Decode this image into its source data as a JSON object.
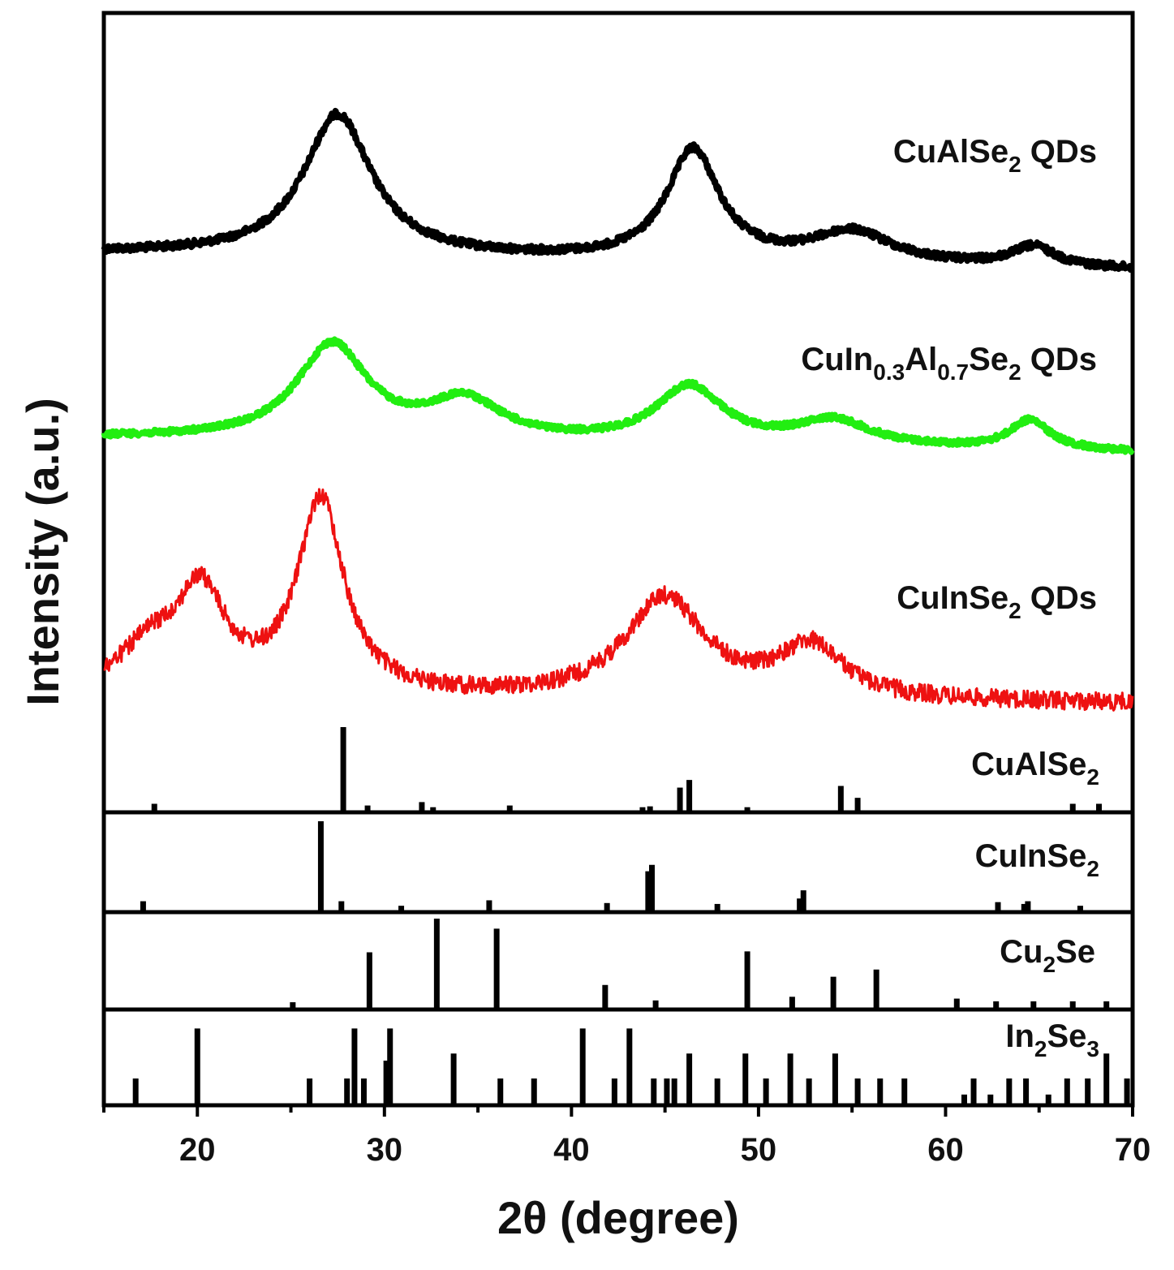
{
  "chart_data": {
    "type": "line",
    "xlabel": "2θ (degree)",
    "ylabel": "Intensity (a.u.)",
    "xlim": [
      15,
      70
    ],
    "xticks": [
      20,
      30,
      40,
      50,
      60,
      70
    ],
    "series": [
      {
        "name": "CuAlSe2 QDs",
        "label_main": "CuAlSe",
        "label_sub": "2",
        "label_tail": " QDs",
        "color": "#000000",
        "baseline": 0.12,
        "peaks": [
          {
            "x": 27.5,
            "height": 1.0,
            "width": 2.2
          },
          {
            "x": 46.5,
            "height": 0.78,
            "width": 1.7
          },
          {
            "x": 55.0,
            "height": 0.22,
            "width": 2.6
          },
          {
            "x": 64.7,
            "height": 0.14,
            "width": 1.4
          }
        ],
        "slope": -0.12
      },
      {
        "name": "CuIn0.3Al0.7Se2 QDs",
        "label_main": "CuIn",
        "label_sub1": "0.3",
        "label_mid": "Al",
        "label_sub2": "0.7",
        "label_mid2": "Se",
        "label_sub3": "2",
        "label_tail": " QDs",
        "color": "#22ee11",
        "baseline": 0.12,
        "peaks": [
          {
            "x": 27.2,
            "height": 0.78,
            "width": 2.3
          },
          {
            "x": 34.3,
            "height": 0.32,
            "width": 2.4
          },
          {
            "x": 46.3,
            "height": 0.47,
            "width": 2.2
          },
          {
            "x": 54.0,
            "height": 0.21,
            "width": 2.4
          },
          {
            "x": 64.5,
            "height": 0.24,
            "width": 1.3
          }
        ],
        "slope": -0.12
      },
      {
        "name": "CuInSe2 QDs",
        "label_main": "CuInSe",
        "label_sub": "2",
        "label_tail": " QDs",
        "color": "#ee1111",
        "baseline": 0.12,
        "peaks": [
          {
            "x": 20.2,
            "height": 0.78,
            "width": 1.6
          },
          {
            "x": 26.6,
            "height": 1.6,
            "width": 1.5
          },
          {
            "x": 45.0,
            "height": 0.83,
            "width": 2.6
          },
          {
            "x": 52.8,
            "height": 0.42,
            "width": 2.1
          },
          {
            "x": 17.5,
            "height": 0.35,
            "width": 2.2
          }
        ],
        "slope": -0.05
      }
    ],
    "references": [
      {
        "name": "CuAlSe2",
        "label_main": "CuAlSe",
        "label_sub": "2",
        "lines": [
          [
            17.7,
            0.1
          ],
          [
            27.8,
            1.0
          ],
          [
            29.1,
            0.08
          ],
          [
            32.0,
            0.12
          ],
          [
            32.6,
            0.06
          ],
          [
            36.7,
            0.08
          ],
          [
            43.8,
            0.06
          ],
          [
            44.2,
            0.07
          ],
          [
            45.8,
            0.29
          ],
          [
            46.3,
            0.38
          ],
          [
            49.4,
            0.06
          ],
          [
            54.4,
            0.31
          ],
          [
            55.3,
            0.17
          ],
          [
            66.8,
            0.1
          ],
          [
            68.2,
            0.1
          ]
        ]
      },
      {
        "name": "CuInSe2",
        "label_main": "CuInSe",
        "label_sub": "2",
        "lines": [
          [
            17.1,
            0.12
          ],
          [
            26.6,
            1.0
          ],
          [
            27.7,
            0.12
          ],
          [
            30.9,
            0.07
          ],
          [
            35.6,
            0.13
          ],
          [
            41.9,
            0.1
          ],
          [
            44.1,
            0.45
          ],
          [
            44.3,
            0.52
          ],
          [
            47.8,
            0.09
          ],
          [
            52.2,
            0.15
          ],
          [
            52.4,
            0.24
          ],
          [
            62.8,
            0.11
          ],
          [
            64.2,
            0.09
          ],
          [
            64.4,
            0.12
          ],
          [
            67.2,
            0.07
          ]
        ]
      },
      {
        "name": "Cu2Se",
        "label_main": "Cu",
        "label_sub": "2",
        "label_tail": "Se",
        "lines": [
          [
            25.1,
            0.08
          ],
          [
            29.2,
            0.63
          ],
          [
            32.8,
            1.0
          ],
          [
            36.0,
            0.89
          ],
          [
            41.8,
            0.27
          ],
          [
            44.5,
            0.1
          ],
          [
            49.4,
            0.64
          ],
          [
            51.8,
            0.14
          ],
          [
            54.0,
            0.36
          ],
          [
            56.3,
            0.44
          ],
          [
            60.6,
            0.12
          ],
          [
            62.7,
            0.09
          ],
          [
            64.7,
            0.09
          ],
          [
            66.8,
            0.09
          ],
          [
            68.6,
            0.09
          ]
        ]
      },
      {
        "name": "In2Se3",
        "label_main": "In",
        "label_sub": "2",
        "label_tail": "Se",
        "label_sub2": "3",
        "lines": [
          [
            16.7,
            0.3
          ],
          [
            20.0,
            0.86
          ],
          [
            26.0,
            0.3
          ],
          [
            28.0,
            0.3
          ],
          [
            28.4,
            0.86
          ],
          [
            28.9,
            0.3
          ],
          [
            30.1,
            0.5
          ],
          [
            30.3,
            0.86
          ],
          [
            33.7,
            0.58
          ],
          [
            36.2,
            0.3
          ],
          [
            38.0,
            0.3
          ],
          [
            40.6,
            0.86
          ],
          [
            42.3,
            0.3
          ],
          [
            43.1,
            0.86
          ],
          [
            44.4,
            0.3
          ],
          [
            45.1,
            0.3
          ],
          [
            45.5,
            0.3
          ],
          [
            46.3,
            0.58
          ],
          [
            47.8,
            0.3
          ],
          [
            49.3,
            0.58
          ],
          [
            50.4,
            0.3
          ],
          [
            51.7,
            0.58
          ],
          [
            52.7,
            0.3
          ],
          [
            54.1,
            0.58
          ],
          [
            55.3,
            0.3
          ],
          [
            56.5,
            0.3
          ],
          [
            57.8,
            0.3
          ],
          [
            61.0,
            0.12
          ],
          [
            61.5,
            0.3
          ],
          [
            62.4,
            0.12
          ],
          [
            63.4,
            0.3
          ],
          [
            64.3,
            0.3
          ],
          [
            65.5,
            0.12
          ],
          [
            66.5,
            0.3
          ],
          [
            67.6,
            0.3
          ],
          [
            68.6,
            0.58
          ],
          [
            69.7,
            0.3
          ]
        ]
      }
    ]
  }
}
